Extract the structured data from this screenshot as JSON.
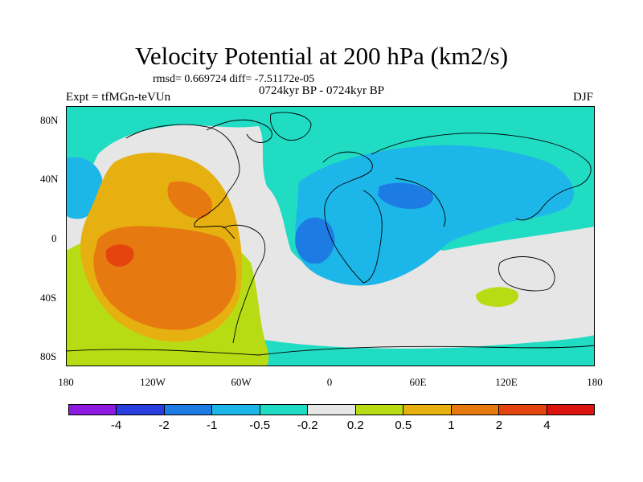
{
  "title": "Velocity Potential at 200 hPa (km2/s)",
  "stats": "rmsd= 0.669724  diff= -7.51172e-05",
  "experiment": "Expt = tfMGn-teVUn",
  "period": "0724kyr BP - 0724kyr BP",
  "season": "DJF",
  "y_ticks": [
    "80N",
    "40N",
    "0",
    "40S",
    "80S"
  ],
  "x_ticks": [
    "180",
    "120W",
    "60W",
    "0",
    "60E",
    "120E",
    "180"
  ],
  "colorbar": {
    "colors": [
      "#8c1adf",
      "#2a3ee0",
      "#1d7ce4",
      "#1cb6e8",
      "#20dcc3",
      "#e6e6e6",
      "#b8dc14",
      "#e6b010",
      "#e67a10",
      "#e4440e",
      "#dc1410"
    ],
    "labels": [
      "-4",
      "-2",
      "-1",
      "-0.5",
      "-0.2",
      "0.2",
      "0.5",
      "1",
      "2",
      "4"
    ]
  },
  "map": {
    "projection": "cylindrical-equidistant",
    "land_outline_color": "#000000"
  }
}
